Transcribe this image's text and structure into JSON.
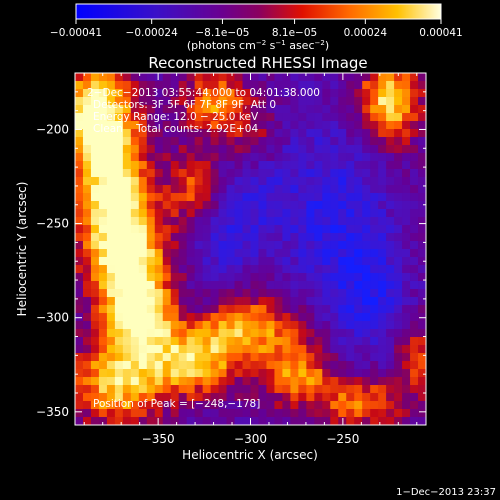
{
  "chart_data": {
    "type": "heatmap",
    "title": "Reconstructed RHESSI Image",
    "xlabel": "Heliocentric X (arcsec)",
    "ylabel": "Heliocentric Y (arcsec)",
    "xlim": [
      -395,
      -205
    ],
    "ylim": [
      -357,
      -170
    ],
    "x_ticks": [
      -350,
      -300,
      -250
    ],
    "y_ticks": [
      -350,
      -300,
      -250,
      -200
    ],
    "x_tick_labels": [
      "−350",
      "−300",
      "−250"
    ],
    "y_tick_labels": [
      "−350",
      "−300",
      "−250",
      "−200"
    ],
    "colorbar": {
      "min": -0.00041,
      "max": 0.00041,
      "tick_values": [
        -0.00041,
        -0.00024,
        -8.1e-05,
        8.1e-05,
        0.00024,
        0.00041
      ],
      "tick_labels": [
        "−0.00041",
        "−0.00024",
        "−8.1e−05",
        "8.1e−05",
        "0.00024",
        "0.00041"
      ],
      "units_main": "(photons cm",
      "units_exp1": "−2",
      "units_mid": " s",
      "units_exp2": "−1",
      "units_end": " asec",
      "units_exp3": "−2",
      "units_close": ")"
    },
    "annotations": [
      "2−Dec−2013 03:55:44.000 to 04:01:38.000",
      "Detectors: 3F 5F 6F 7F 8F 9F, Att 0",
      "Energy Range: 12.0 − 25.0 keV",
      "Clean    Total counts: 2.92E+04"
    ],
    "peak_label": "Position of Peak = [−248,−178]",
    "peak_position": [
      -248,
      -178
    ],
    "hot_regions": [
      {
        "x": -385,
        "y": -190,
        "sx": 14,
        "sy": 18,
        "a": 1.0
      },
      {
        "x": -375,
        "y": -225,
        "sx": 14,
        "sy": 22,
        "a": 0.95
      },
      {
        "x": -368,
        "y": -265,
        "sx": 16,
        "sy": 20,
        "a": 1.0
      },
      {
        "x": -360,
        "y": -300,
        "sx": 14,
        "sy": 16,
        "a": 0.95
      },
      {
        "x": -372,
        "y": -335,
        "sx": 18,
        "sy": 16,
        "a": 0.85
      },
      {
        "x": -320,
        "y": -185,
        "sx": 12,
        "sy": 12,
        "a": 0.7
      },
      {
        "x": -330,
        "y": -230,
        "sx": 10,
        "sy": 14,
        "a": 0.55
      },
      {
        "x": -300,
        "y": -205,
        "sx": 10,
        "sy": 14,
        "a": 0.45
      },
      {
        "x": -305,
        "y": -305,
        "sx": 22,
        "sy": 12,
        "a": 0.8
      },
      {
        "x": -330,
        "y": -325,
        "sx": 16,
        "sy": 12,
        "a": 0.75
      },
      {
        "x": -275,
        "y": -330,
        "sx": 14,
        "sy": 12,
        "a": 0.7
      },
      {
        "x": -240,
        "y": -345,
        "sx": 16,
        "sy": 10,
        "a": 0.65
      },
      {
        "x": -225,
        "y": -185,
        "sx": 12,
        "sy": 16,
        "a": 0.95
      },
      {
        "x": -210,
        "y": -320,
        "sx": 8,
        "sy": 14,
        "a": 0.55
      }
    ],
    "cold_regions": [
      {
        "x": -300,
        "y": -230,
        "sx": 14,
        "sy": 20,
        "a": 0.6
      },
      {
        "x": -255,
        "y": -245,
        "sx": 20,
        "sy": 35,
        "a": 0.7
      },
      {
        "x": -235,
        "y": -290,
        "sx": 14,
        "sy": 22,
        "a": 0.65
      },
      {
        "x": -315,
        "y": -260,
        "sx": 12,
        "sy": 12,
        "a": 0.55
      },
      {
        "x": -330,
        "y": -295,
        "sx": 10,
        "sy": 10,
        "a": 0.45
      }
    ]
  },
  "footer": {
    "timestamp": "1−Dec−2013 23:37"
  },
  "colors": {
    "cold": "#1a1aff",
    "mid": "#5a00a0",
    "warm": "#ff5a00",
    "hot": "#ffffa0"
  }
}
